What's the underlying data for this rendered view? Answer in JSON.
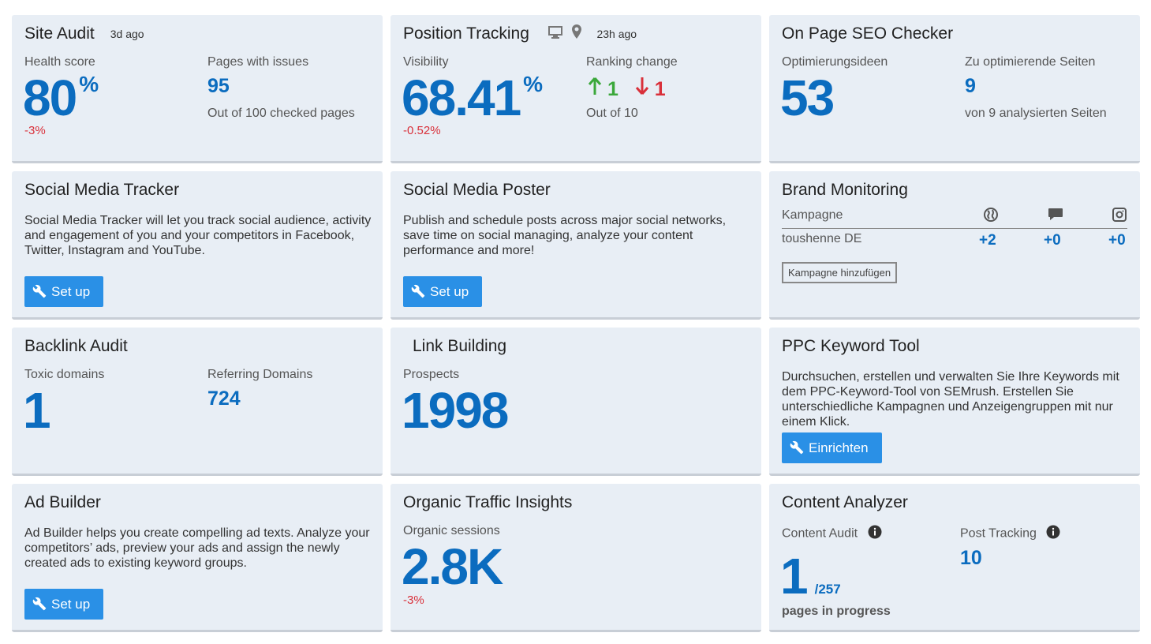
{
  "site_audit": {
    "title": "Site Audit",
    "updated": "3d ago",
    "health_label": "Health score",
    "health_value": "80",
    "percent": "%",
    "health_change": "-3%",
    "issues_label": "Pages with issues",
    "issues_value": "95",
    "issues_sub": "Out of 100 checked pages"
  },
  "position_tracking": {
    "title": "Position Tracking",
    "updated": "23h ago",
    "visibility_label": "Visibility",
    "visibility_value": "68.41",
    "percent": "%",
    "visibility_change": "-0.52%",
    "ranking_label": "Ranking change",
    "up_value": "1",
    "down_value": "1",
    "ranking_sub": "Out of 10",
    "up_color": "#3ba83b",
    "down_color": "#d9303a"
  },
  "on_page_seo": {
    "title": "On Page SEO Checker",
    "ideas_label": "Optimierungsideen",
    "ideas_value": "53",
    "pages_label": "Zu optimierende Seiten",
    "pages_value": "9",
    "pages_sub": "von 9 analysierten Seiten"
  },
  "social_tracker": {
    "title": "Social Media Tracker",
    "description": "Social Media Tracker will let you track social audience, activity and engagement of you and your competitors in Facebook, Twitter, Instagram and YouTube.",
    "button": "Set up"
  },
  "social_poster": {
    "title": "Social Media Poster",
    "description": "Publish and schedule posts across major social networks, save time on social managing, analyze your content performance and more!",
    "button": "Set up"
  },
  "brand_monitoring": {
    "title": "Brand Monitoring",
    "campaign_header": "Kampagne",
    "icons": [
      "globe-icon",
      "comment-icon",
      "instagram-icon"
    ],
    "row_name": "toushenne DE",
    "values": [
      "+2",
      "+0",
      "+0"
    ],
    "add_button": "Kampagne hinzufügen"
  },
  "backlink_audit": {
    "title": "Backlink Audit",
    "toxic_label": "Toxic domains",
    "toxic_value": "1",
    "referring_label": "Referring Domains",
    "referring_value": "724"
  },
  "link_building": {
    "title": "Link Building",
    "prospects_label": "Prospects",
    "prospects_value": "1998"
  },
  "ppc_keyword": {
    "title": "PPC Keyword Tool",
    "description": "Durchsuchen, erstellen und verwalten Sie Ihre Keywords mit dem PPC-Keyword-Tool von SEMrush. Erstellen Sie unterschiedliche Kampagnen und Anzeigengruppen mit nur einem Klick.",
    "button": "Einrichten"
  },
  "ad_builder": {
    "title": "Ad Builder",
    "description": "Ad Builder helps you create compelling ad texts. Analyze your competitors’ ads, preview your ads and assign the newly created ads to existing keyword groups.",
    "button": "Set up"
  },
  "organic_traffic": {
    "title": "Organic Traffic Insights",
    "sessions_label": "Organic sessions",
    "sessions_value": "2.8K",
    "sessions_change": "-3%"
  },
  "content_analyzer": {
    "title": "Content Analyzer",
    "audit_label": "Content Audit",
    "audit_value": "1",
    "audit_total": "/257",
    "audit_sub": "pages in progress",
    "tracking_label": "Post Tracking",
    "tracking_value": "10"
  },
  "colors": {
    "accent": "#0b6cbf",
    "button": "#2a90e6",
    "card_bg": "#e8eef5",
    "negative": "#d9303a",
    "positive": "#3ba83b"
  }
}
